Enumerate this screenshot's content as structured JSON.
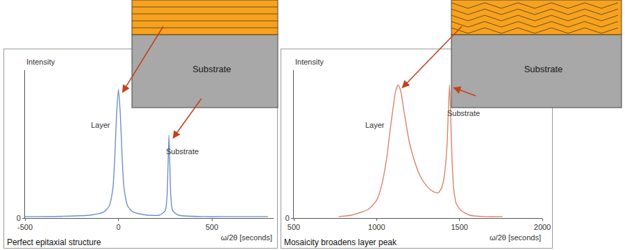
{
  "chart_data": [
    {
      "type": "line",
      "title": "Perfect epitaxial structure",
      "xlabel": "ω/2θ [seconds]",
      "ylabel": "Intensity",
      "color": "#6f8fca",
      "x": [
        -500,
        -300,
        -150,
        -80,
        -50,
        -30,
        -20,
        -10,
        0,
        10,
        20,
        30,
        50,
        80,
        150,
        220,
        250,
        260,
        265,
        270,
        275,
        280,
        290,
        320,
        450,
        620,
        800
      ],
      "values": [
        0.01,
        0.012,
        0.02,
        0.04,
        0.08,
        0.2,
        0.4,
        0.7,
        0.87,
        0.7,
        0.4,
        0.2,
        0.08,
        0.04,
        0.02,
        0.02,
        0.05,
        0.15,
        0.35,
        0.56,
        0.35,
        0.15,
        0.05,
        0.02,
        0.01,
        0.01,
        0.01
      ],
      "xlim": [
        -500,
        830
      ],
      "xticks": [
        -500,
        0,
        500
      ],
      "ylim": [
        0,
        1
      ],
      "yticks": [
        0
      ],
      "grid": false,
      "annotations": [
        {
          "text": "Layer",
          "x": -95,
          "y": 0.63
        },
        {
          "text": "Substrate",
          "x": 340,
          "y": 0.45
        }
      ]
    },
    {
      "type": "line",
      "title": "Mosaicity broadens layer peak",
      "xlabel": "ω/2θ [seconds]",
      "ylabel": "Intensity",
      "color": "#d9846c",
      "x": [
        770,
        850,
        950,
        1000,
        1030,
        1060,
        1080,
        1100,
        1115,
        1130,
        1145,
        1160,
        1180,
        1200,
        1230,
        1260,
        1300,
        1340,
        1370,
        1390,
        1405,
        1415,
        1425,
        1432,
        1440,
        1448,
        1455,
        1465,
        1480,
        1510,
        1560,
        1650,
        1760
      ],
      "values": [
        0.01,
        0.02,
        0.06,
        0.12,
        0.22,
        0.4,
        0.58,
        0.75,
        0.86,
        0.9,
        0.86,
        0.76,
        0.62,
        0.5,
        0.38,
        0.29,
        0.22,
        0.18,
        0.17,
        0.2,
        0.26,
        0.35,
        0.5,
        0.7,
        0.9,
        0.65,
        0.4,
        0.2,
        0.1,
        0.05,
        0.02,
        0.01,
        0.01
      ],
      "xlim": [
        500,
        2000
      ],
      "xticks": [
        500,
        1000,
        1500,
        2000
      ],
      "ylim": [
        0,
        1
      ],
      "yticks": [
        0
      ],
      "grid": false,
      "annotations": [
        {
          "text": "Layer",
          "x": 990,
          "y": 0.63
        },
        {
          "text": "Substrate",
          "x": 1525,
          "y": 0.71
        }
      ]
    }
  ],
  "schematics": [
    {
      "substrate_label": "Substrate"
    },
    {
      "substrate_label": "Substrate"
    }
  ]
}
